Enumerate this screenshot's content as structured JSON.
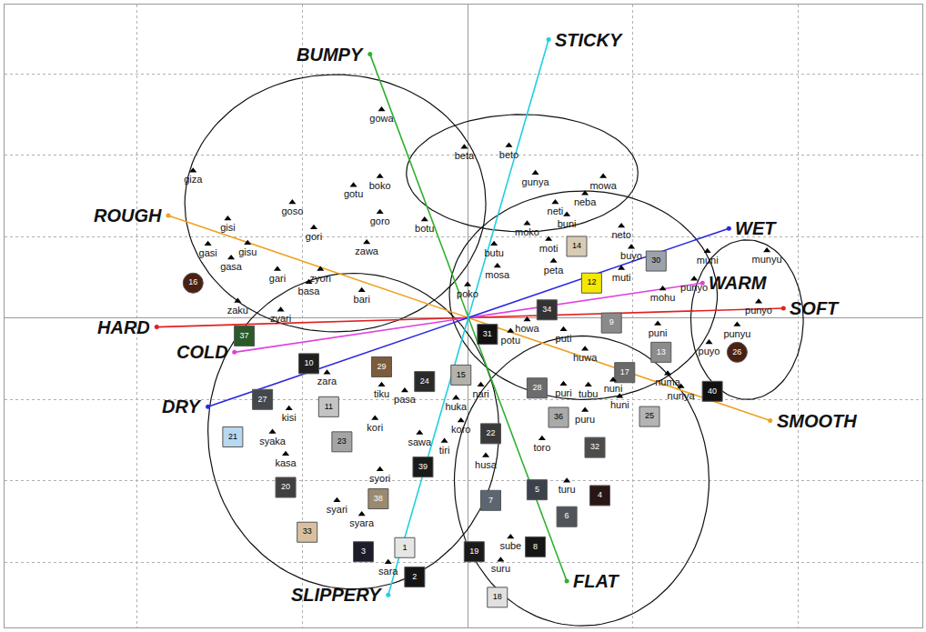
{
  "chart_data": {
    "type": "scatter",
    "xlim": [
      -2.8,
      2.75
    ],
    "ylim": [
      -3.8,
      3.85
    ],
    "xticks": [
      -2,
      -1,
      0,
      1,
      2
    ],
    "yticks": [
      -3,
      -2,
      -1,
      0,
      1,
      2,
      3
    ],
    "grid": true,
    "tick_labels": false,
    "points": {
      "marker": "triangle",
      "color": "#000000",
      "labels": [
        "giza",
        "gowa",
        "boko",
        "gotu",
        "goso",
        "gori",
        "goro",
        "gisi",
        "gisu",
        "gasi",
        "gasa",
        "zawa",
        "gari",
        "zyori",
        "basa",
        "bari",
        "zaku",
        "zyari",
        "botu",
        "beta",
        "beto",
        "gunya",
        "mowa",
        "neba",
        "neti",
        "buni",
        "neto",
        "buyo",
        "moko",
        "moti",
        "butu",
        "mosa",
        "peta",
        "muti",
        "poko",
        "muni",
        "munyu",
        "punyo",
        "mohu",
        "punyo",
        "puni",
        "punyu",
        "puyo",
        "numa",
        "nunya",
        "nuni",
        "huni",
        "puri",
        "tubu",
        "puru",
        "huwa",
        "puti",
        "howa",
        "potu",
        "nari",
        "huka",
        "koro",
        "tiri",
        "sawa",
        "kori",
        "pasa",
        "tiku",
        "zara",
        "kisi",
        "syaka",
        "kasa",
        "syori",
        "syari",
        "syara",
        "sara",
        "toro",
        "husa",
        "turu",
        "sube",
        "suru"
      ],
      "x": [
        -1.66,
        -0.52,
        -0.53,
        -0.69,
        -1.06,
        -0.93,
        -0.53,
        -1.45,
        -1.33,
        -1.57,
        -1.43,
        -0.61,
        -1.15,
        -0.89,
        -0.96,
        -0.64,
        -1.39,
        -1.13,
        -0.26,
        -0.02,
        0.25,
        0.41,
        0.82,
        0.71,
        0.53,
        0.6,
        0.93,
        0.99,
        0.36,
        0.49,
        0.16,
        0.18,
        0.52,
        0.93,
        0.0,
        1.45,
        1.81,
        1.37,
        1.18,
        1.76,
        1.15,
        1.63,
        1.46,
        1.21,
        1.29,
        0.88,
        0.92,
        0.58,
        0.73,
        0.71,
        0.71,
        0.58,
        0.36,
        0.26,
        0.08,
        -0.07,
        -0.04,
        -0.14,
        -0.29,
        -0.56,
        -0.38,
        -0.52,
        -0.85,
        -1.08,
        -1.18,
        -1.1,
        -0.53,
        -0.79,
        -0.64,
        -0.48,
        0.45,
        0.11,
        0.6,
        0.26,
        0.2
      ],
      "y": [
        1.81,
        2.56,
        1.74,
        1.63,
        1.42,
        1.11,
        1.3,
        1.22,
        0.92,
        0.91,
        0.74,
        0.93,
        0.6,
        0.6,
        0.44,
        0.34,
        0.21,
        0.1,
        1.21,
        2.1,
        2.12,
        1.78,
        1.74,
        1.53,
        1.42,
        1.27,
        1.13,
        0.87,
        1.16,
        0.97,
        0.91,
        0.64,
        0.7,
        0.61,
        0.41,
        0.82,
        0.83,
        0.48,
        0.36,
        0.2,
        -0.07,
        -0.08,
        -0.3,
        -0.68,
        -0.84,
        -0.76,
        -0.96,
        -0.81,
        -0.82,
        -1.13,
        -0.38,
        -0.14,
        -0.02,
        -0.16,
        -0.82,
        -0.98,
        -1.26,
        -1.51,
        -1.41,
        -1.23,
        -0.89,
        -0.82,
        -0.67,
        -1.11,
        -1.4,
        -1.67,
        -1.86,
        -2.24,
        -2.41,
        -3.0,
        -1.48,
        -1.69,
        -2.0,
        -2.69,
        -2.97
      ]
    },
    "vectors": [
      {
        "color": "#f0a020",
        "ends": [
          {
            "label": "ROUGH",
            "x": -1.81,
            "y": 1.26
          },
          {
            "label": "SMOOTH",
            "x": 1.83,
            "y": -1.26
          }
        ]
      },
      {
        "color": "#e02020",
        "ends": [
          {
            "label": "HARD",
            "x": -1.88,
            "y": -0.11
          },
          {
            "label": "SOFT",
            "x": 1.91,
            "y": 0.12
          }
        ]
      },
      {
        "color": "#e040e0",
        "ends": [
          {
            "label": "COLD",
            "x": -1.41,
            "y": -0.42
          },
          {
            "label": "WARM",
            "x": 1.42,
            "y": 0.43
          }
        ]
      },
      {
        "color": "#2828e0",
        "ends": [
          {
            "label": "DRY",
            "x": -1.57,
            "y": -1.09
          },
          {
            "label": "WET",
            "x": 1.58,
            "y": 1.1
          }
        ]
      },
      {
        "color": "#30b030",
        "ends": [
          {
            "label": "BUMPY",
            "x": -0.59,
            "y": 3.24
          },
          {
            "label": "FLAT",
            "x": 0.6,
            "y": -3.23
          }
        ]
      },
      {
        "color": "#20d0e0",
        "ends": [
          {
            "label": "STICKY",
            "x": 0.49,
            "y": 3.42
          },
          {
            "label": "SLIPPERY",
            "x": -0.48,
            "y": -3.4
          }
        ]
      }
    ],
    "ellipses": [
      {
        "cx": -0.8,
        "cy": 1.41,
        "rx": 0.91,
        "ry": 1.58
      },
      {
        "cx": 0.33,
        "cy": 1.78,
        "rx": 0.7,
        "ry": 0.72
      },
      {
        "cx": 0.7,
        "cy": 0.28,
        "rx": 0.81,
        "ry": 1.28
      },
      {
        "cx": 1.69,
        "cy": -0.02,
        "rx": 0.34,
        "ry": 0.98
      },
      {
        "cx": -0.69,
        "cy": -1.39,
        "rx": 0.88,
        "ry": 1.94
      },
      {
        "cx": 0.69,
        "cy": -2.0,
        "rx": 0.77,
        "ry": 1.78
      }
    ],
    "samples": [
      {
        "label": 1,
        "x": -0.38,
        "y": -2.82,
        "color": "#e6e6e6",
        "marker": "square"
      },
      {
        "label": 2,
        "x": -0.32,
        "y": -3.18,
        "color": "#151515",
        "marker": "square"
      },
      {
        "label": 3,
        "x": -0.63,
        "y": -2.87,
        "color": "#1c1c2a",
        "marker": "square"
      },
      {
        "label": 4,
        "x": 0.8,
        "y": -2.18,
        "color": "#2a1614",
        "marker": "square"
      },
      {
        "label": 5,
        "x": 0.42,
        "y": -2.11,
        "color": "#3c424c",
        "marker": "square"
      },
      {
        "label": 6,
        "x": 0.6,
        "y": -2.44,
        "color": "#50555c",
        "marker": "square"
      },
      {
        "label": 7,
        "x": 0.14,
        "y": -2.24,
        "color": "#5c6672",
        "marker": "square"
      },
      {
        "label": 8,
        "x": 0.41,
        "y": -2.81,
        "color": "#161616",
        "marker": "square"
      },
      {
        "label": 9,
        "x": 0.87,
        "y": -0.06,
        "color": "#8a8a8a",
        "marker": "square"
      },
      {
        "label": 10,
        "x": -0.96,
        "y": -0.56,
        "color": "#202020",
        "marker": "square"
      },
      {
        "label": 11,
        "x": -0.84,
        "y": -1.09,
        "color": "#c4c4c4",
        "marker": "square"
      },
      {
        "label": 12,
        "x": 0.75,
        "y": 0.43,
        "color": "#f5e800",
        "marker": "square"
      },
      {
        "label": 13,
        "x": 1.17,
        "y": -0.42,
        "color": "#8c8c8c",
        "marker": "square"
      },
      {
        "label": 14,
        "x": 0.66,
        "y": 0.88,
        "color": "#d6ccb4",
        "marker": "square"
      },
      {
        "label": 15,
        "x": -0.04,
        "y": -0.7,
        "color": "#b4b2aa",
        "marker": "square"
      },
      {
        "label": 16,
        "x": -1.66,
        "y": 0.43,
        "color": "#4a2010",
        "marker": "circle"
      },
      {
        "label": 17,
        "x": 0.95,
        "y": -0.67,
        "color": "#6a6a6a",
        "marker": "square"
      },
      {
        "label": 18,
        "x": 0.18,
        "y": -3.43,
        "color": "#e0e0e0",
        "marker": "square"
      },
      {
        "label": 19,
        "x": 0.04,
        "y": -2.87,
        "color": "#1a1a1a",
        "marker": "square"
      },
      {
        "label": 20,
        "x": -1.1,
        "y": -2.08,
        "color": "#404040",
        "marker": "square"
      },
      {
        "label": 21,
        "x": -1.42,
        "y": -1.46,
        "color": "#b8d8f0",
        "marker": "square"
      },
      {
        "label": 22,
        "x": 0.14,
        "y": -1.42,
        "color": "#3a3a3a",
        "marker": "square"
      },
      {
        "label": 23,
        "x": -0.76,
        "y": -1.52,
        "color": "#a4a4a4",
        "marker": "square"
      },
      {
        "label": 24,
        "x": -0.26,
        "y": -0.78,
        "color": "#2a2a2a",
        "marker": "square"
      },
      {
        "label": 25,
        "x": 1.1,
        "y": -1.21,
        "color": "#b4b4b4",
        "marker": "square"
      },
      {
        "label": 26,
        "x": 1.63,
        "y": -0.42,
        "color": "#4a2010",
        "marker": "circle"
      },
      {
        "label": 27,
        "x": -1.24,
        "y": -1.0,
        "color": "#44484c",
        "marker": "square"
      },
      {
        "label": 28,
        "x": 0.42,
        "y": -0.86,
        "color": "#6c6c6c",
        "marker": "square"
      },
      {
        "label": 29,
        "x": -0.52,
        "y": -0.6,
        "color": "#7c5c3a",
        "marker": "square"
      },
      {
        "label": 30,
        "x": 1.14,
        "y": 0.7,
        "color": "#9ca2aa",
        "marker": "square"
      },
      {
        "label": 31,
        "x": 0.12,
        "y": -0.2,
        "color": "#111111",
        "marker": "square"
      },
      {
        "label": 32,
        "x": 0.77,
        "y": -1.59,
        "color": "#4c4c4c",
        "marker": "square"
      },
      {
        "label": 33,
        "x": -0.97,
        "y": -2.63,
        "color": "#d8c0a0",
        "marker": "square"
      },
      {
        "label": 34,
        "x": 0.48,
        "y": 0.1,
        "color": "#333333",
        "marker": "square"
      },
      {
        "label": 36,
        "x": 0.55,
        "y": -1.22,
        "color": "#aaaaaa",
        "marker": "square"
      },
      {
        "label": 37,
        "x": -1.35,
        "y": -0.22,
        "color": "#2a5a2a",
        "marker": "square"
      },
      {
        "label": 38,
        "x": -0.54,
        "y": -2.22,
        "color": "#9a8a70",
        "marker": "square"
      },
      {
        "label": 39,
        "x": -0.27,
        "y": -1.83,
        "color": "#1a1a1a",
        "marker": "square"
      },
      {
        "label": 40,
        "x": 1.48,
        "y": -0.9,
        "color": "#111111",
        "marker": "square"
      }
    ]
  }
}
